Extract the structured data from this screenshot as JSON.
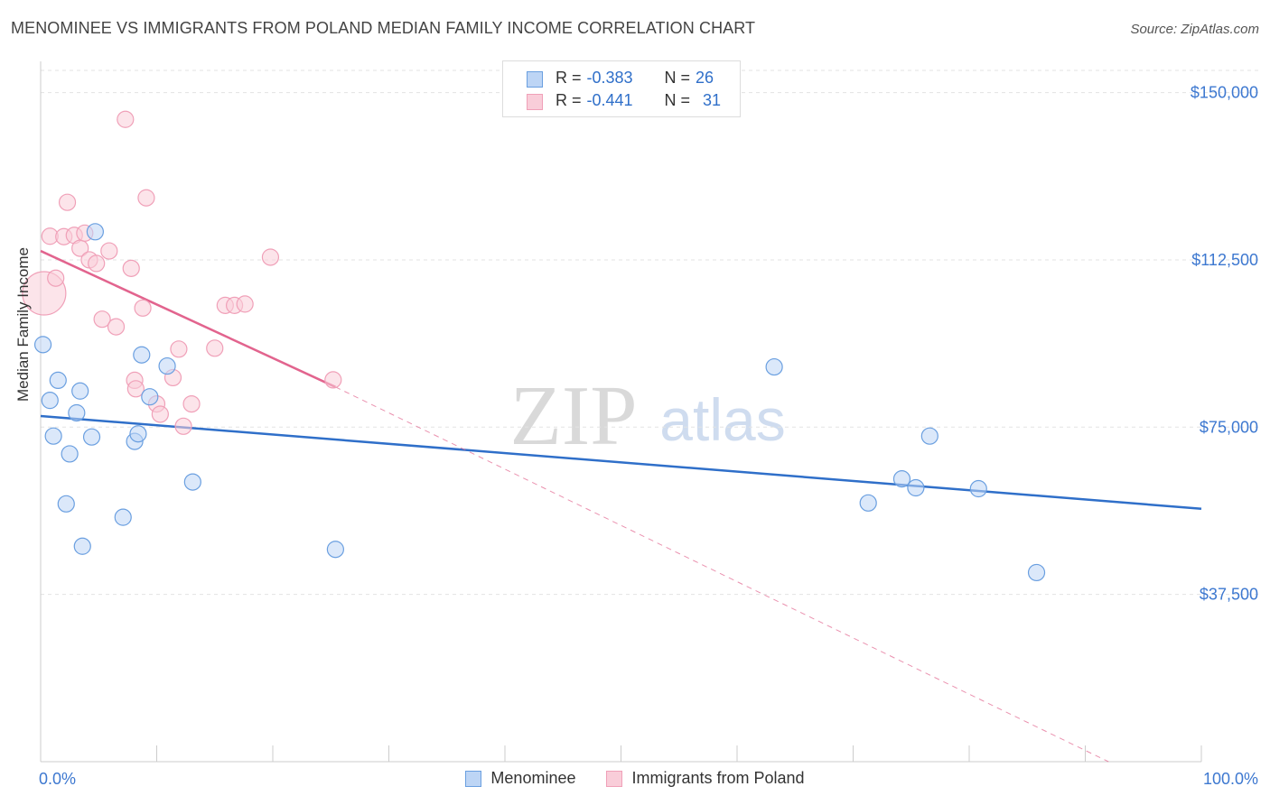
{
  "title": "MENOMINEE VS IMMIGRANTS FROM POLAND MEDIAN FAMILY INCOME CORRELATION CHART",
  "source": "Source: ZipAtlas.com",
  "watermark": {
    "zip": "ZIP",
    "atlas": "atlas"
  },
  "stats": {
    "menominee": {
      "r_label": "R = ",
      "r_value": "-0.383",
      "n_label": "N = ",
      "n_value": "26"
    },
    "poland": {
      "r_label": "R = ",
      "r_value": "-0.441",
      "n_label": "N = ",
      "n_value": "31"
    }
  },
  "chart_data": {
    "type": "scatter",
    "title": "MENOMINEE VS IMMIGRANTS FROM POLAND MEDIAN FAMILY INCOME CORRELATION CHART",
    "xlabel": "",
    "ylabel": "Median Family Income",
    "xlim": [
      0,
      100
    ],
    "ylim": [
      0,
      157000
    ],
    "x_tick_labels": [
      "0.0%",
      "100.0%"
    ],
    "y_ticks": [
      37500,
      75000,
      112500,
      150000
    ],
    "y_tick_labels": [
      "$37,500",
      "$75,000",
      "$112,500",
      "$150,000"
    ],
    "grid": "horizontal dashed",
    "legend": "bottom-center",
    "series": [
      {
        "name": "Menominee",
        "color": "#6a9fe0",
        "fill": "#bdd5f5",
        "line_color": "#2f6fc9",
        "trend": {
          "x": [
            0,
            100
          ],
          "y": [
            77500,
            56700
          ]
        },
        "points": [
          {
            "x": 0.2,
            "y": 93500
          },
          {
            "x": 0.8,
            "y": 81000
          },
          {
            "x": 1.1,
            "y": 73000
          },
          {
            "x": 1.5,
            "y": 85500
          },
          {
            "x": 2.2,
            "y": 57800
          },
          {
            "x": 2.5,
            "y": 69000
          },
          {
            "x": 3.1,
            "y": 78200
          },
          {
            "x": 3.4,
            "y": 83100
          },
          {
            "x": 3.6,
            "y": 48300
          },
          {
            "x": 4.4,
            "y": 72800
          },
          {
            "x": 4.7,
            "y": 118800
          },
          {
            "x": 7.1,
            "y": 54800
          },
          {
            "x": 8.1,
            "y": 71800
          },
          {
            "x": 8.4,
            "y": 73500
          },
          {
            "x": 8.7,
            "y": 91200
          },
          {
            "x": 9.4,
            "y": 81800
          },
          {
            "x": 10.9,
            "y": 88700
          },
          {
            "x": 13.1,
            "y": 62700
          },
          {
            "x": 25.4,
            "y": 47600
          },
          {
            "x": 63.2,
            "y": 88500
          },
          {
            "x": 71.3,
            "y": 58000
          },
          {
            "x": 74.2,
            "y": 63400
          },
          {
            "x": 75.4,
            "y": 61400
          },
          {
            "x": 76.6,
            "y": 73000
          },
          {
            "x": 80.8,
            "y": 61200
          },
          {
            "x": 85.8,
            "y": 42400
          }
        ]
      },
      {
        "name": "Immigrants from Poland",
        "color": "#f0a0b8",
        "fill": "#f9cdd9",
        "line_color": "#e2648e",
        "trend": {
          "x": [
            0,
            25.4
          ],
          "y": [
            114500,
            84000
          ]
        },
        "trend_extension": {
          "x": [
            25.4,
            92
          ],
          "y": [
            84000,
            0
          ]
        },
        "points": [
          {
            "x": 0.3,
            "y": 105000,
            "big": true
          },
          {
            "x": 0.8,
            "y": 117800
          },
          {
            "x": 1.3,
            "y": 108400
          },
          {
            "x": 2.0,
            "y": 117700
          },
          {
            "x": 2.3,
            "y": 125400
          },
          {
            "x": 2.9,
            "y": 118000
          },
          {
            "x": 3.4,
            "y": 115100
          },
          {
            "x": 3.8,
            "y": 118500
          },
          {
            "x": 4.2,
            "y": 112500
          },
          {
            "x": 4.8,
            "y": 111700
          },
          {
            "x": 5.3,
            "y": 99200
          },
          {
            "x": 5.9,
            "y": 114500
          },
          {
            "x": 6.5,
            "y": 97500
          },
          {
            "x": 7.3,
            "y": 144000
          },
          {
            "x": 7.8,
            "y": 110600
          },
          {
            "x": 8.1,
            "y": 85500
          },
          {
            "x": 8.2,
            "y": 83600
          },
          {
            "x": 8.8,
            "y": 101700
          },
          {
            "x": 9.1,
            "y": 126400
          },
          {
            "x": 10.0,
            "y": 80200
          },
          {
            "x": 10.3,
            "y": 77900
          },
          {
            "x": 11.4,
            "y": 86100
          },
          {
            "x": 11.9,
            "y": 92500
          },
          {
            "x": 12.3,
            "y": 75200
          },
          {
            "x": 13.0,
            "y": 80200
          },
          {
            "x": 15.0,
            "y": 92700
          },
          {
            "x": 15.9,
            "y": 102300
          },
          {
            "x": 16.7,
            "y": 102300
          },
          {
            "x": 17.6,
            "y": 102600
          },
          {
            "x": 19.8,
            "y": 113100
          },
          {
            "x": 25.2,
            "y": 85600
          }
        ]
      }
    ]
  }
}
